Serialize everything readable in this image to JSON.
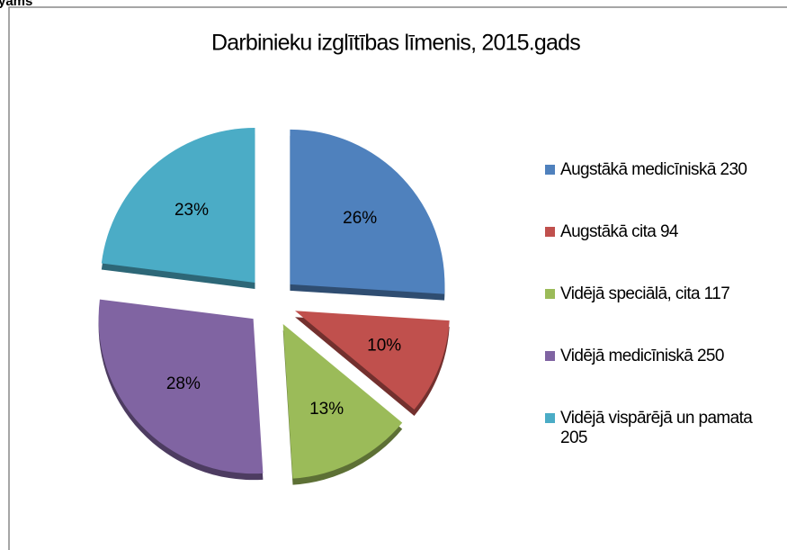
{
  "cut_text": "yams",
  "chart_data": {
    "type": "pie",
    "title": "Darbinieku izglītības līmenis, 2015.gads",
    "categories": [
      "Augstākā medicīniskā 230",
      "Augstākā cita 94",
      "Vidējā speciālā, cita 117",
      "Vidējā medicīniskā 250",
      "Vidējā vispārējā un pamata 205"
    ],
    "values": [
      26,
      10,
      13,
      28,
      23
    ],
    "value_labels": [
      "26%",
      "10%",
      "13%",
      "28%",
      "23%"
    ],
    "colors": [
      "#4f81bd",
      "#c0504d",
      "#9bbb59",
      "#8064a2",
      "#4bacc6"
    ],
    "legend": "right"
  }
}
